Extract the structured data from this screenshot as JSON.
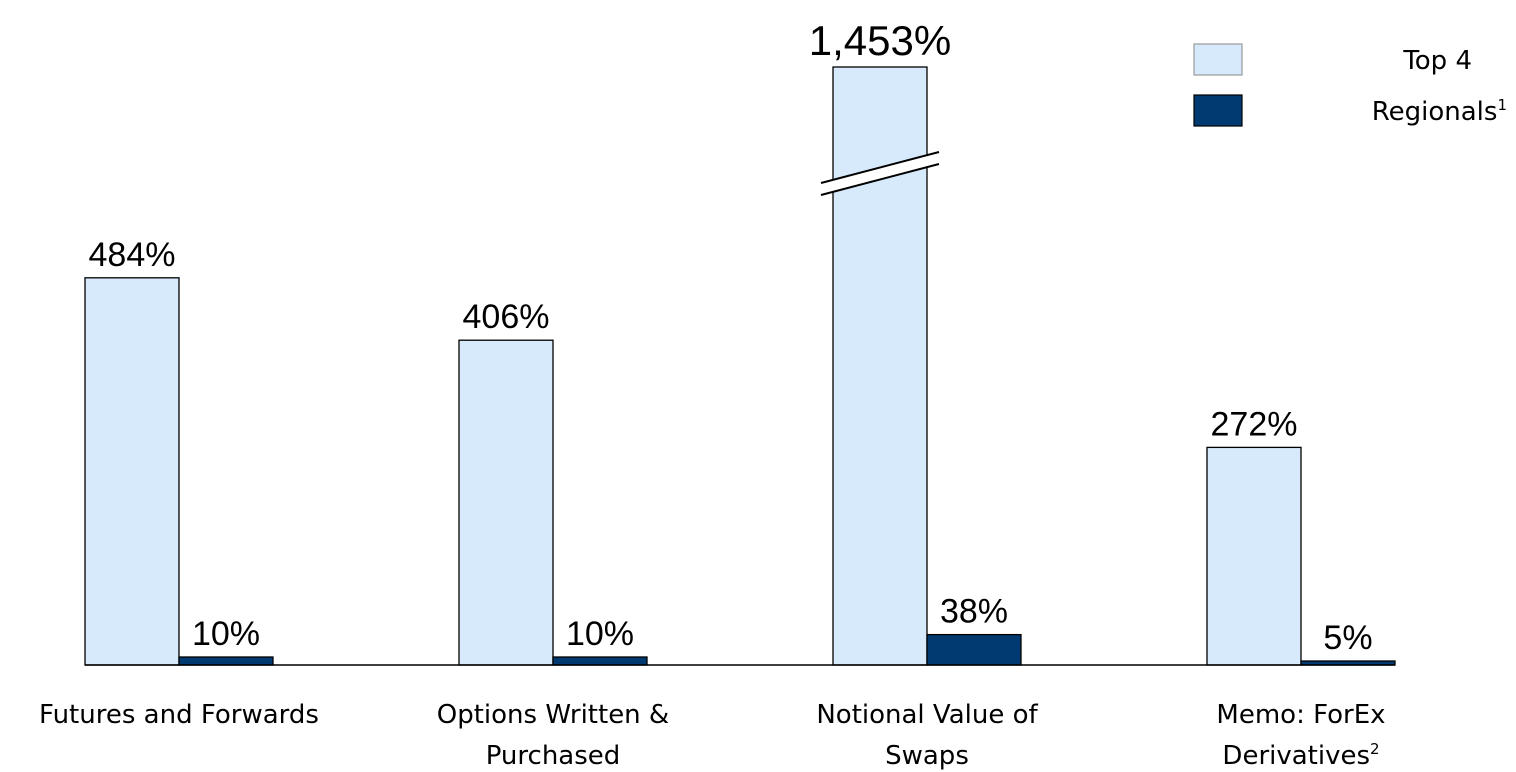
{
  "chart_data": {
    "type": "bar",
    "categories": [
      {
        "lines": [
          "Futures and Forwards"
        ],
        "sup": ""
      },
      {
        "lines": [
          "Options Written &",
          "Purchased"
        ],
        "sup": ""
      },
      {
        "lines": [
          "Notional Value of",
          "Swaps"
        ],
        "sup": ""
      },
      {
        "lines": [
          "Memo: ForEx",
          "Derivatives"
        ],
        "sup": "2"
      }
    ],
    "series": [
      {
        "name": "Top 4",
        "sup": "",
        "color": "#d6eafc",
        "values": [
          484,
          406,
          1453,
          272
        ],
        "labels": [
          "484%",
          "406%",
          "1,453%",
          "272%"
        ]
      },
      {
        "name": "Regionals",
        "sup": "1",
        "color": "#003a70",
        "values": [
          10,
          10,
          38,
          5
        ],
        "labels": [
          "10%",
          "10%",
          "38%",
          "5%"
        ]
      }
    ],
    "axis_break": {
      "category_index": 2,
      "series_index": 0
    },
    "ylim": [
      0,
      750
    ],
    "legend_position": "top-right",
    "grid": false
  }
}
